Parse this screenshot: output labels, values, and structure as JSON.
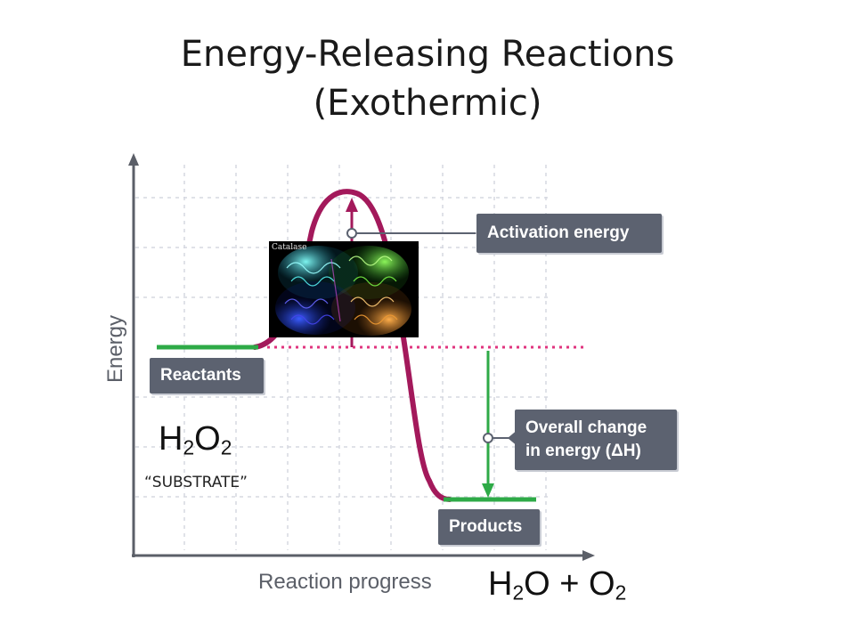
{
  "title": {
    "line1": "Energy-Releasing Reactions",
    "line2": "(Exothermic)"
  },
  "diagram": {
    "y_axis_label": "Energy",
    "x_axis_label": "Reaction progress",
    "labels": {
      "activation": "Activation energy",
      "reactants": "Reactants",
      "overall_line1": "Overall change",
      "overall_line2": "in energy (ΔH)",
      "products": "Products"
    },
    "colors": {
      "curve": "#a3195b",
      "level": "#2eaa47",
      "dotted": "#e0357f",
      "label_bg": "#5c6270",
      "grid": "#d6d8e0",
      "axis": "#5b5f68"
    }
  },
  "annotations": {
    "substrate_formula": {
      "base1": "H",
      "sub1": "2",
      "base2": "O",
      "sub2": "2"
    },
    "substrate_caption": "“SUBSTRATE”",
    "product_formula": {
      "a": "H",
      "a_sub": "2",
      "b": "O + O",
      "b_sub": "2"
    }
  },
  "image": {
    "caption": "Catalase",
    "icon": "protein-structure-image"
  }
}
